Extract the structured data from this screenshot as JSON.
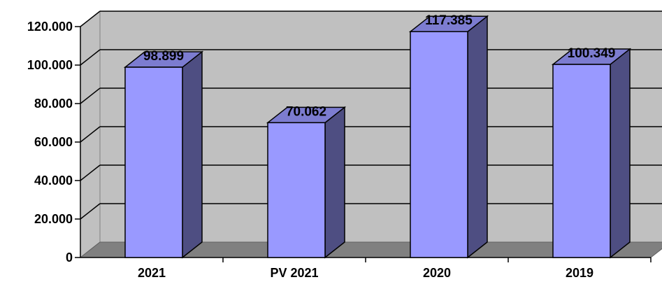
{
  "chart_data": {
    "type": "bar",
    "style": "3d-column",
    "categories": [
      "2021",
      "PV 2021",
      "2020",
      "2019"
    ],
    "values": [
      98.899,
      70.062,
      117.385,
      100.349
    ],
    "data_labels": [
      "98.899",
      "70.062",
      "117.385",
      "100.349"
    ],
    "y_ticks": [
      "0",
      "20.000",
      "40.000",
      "60.000",
      "80.000",
      "100.000",
      "120.000"
    ],
    "ylim": [
      0,
      120
    ],
    "grid": true,
    "legend": "none",
    "title": "",
    "xlabel": "",
    "ylabel": ""
  },
  "colors": {
    "bar_front": "#9999ff",
    "bar_side": "#4e4e82",
    "bar_top": "#7c7cd0",
    "wall": "#c0c0c0",
    "floor": "#808080",
    "grid": "#000000",
    "background": "#ffffff"
  }
}
